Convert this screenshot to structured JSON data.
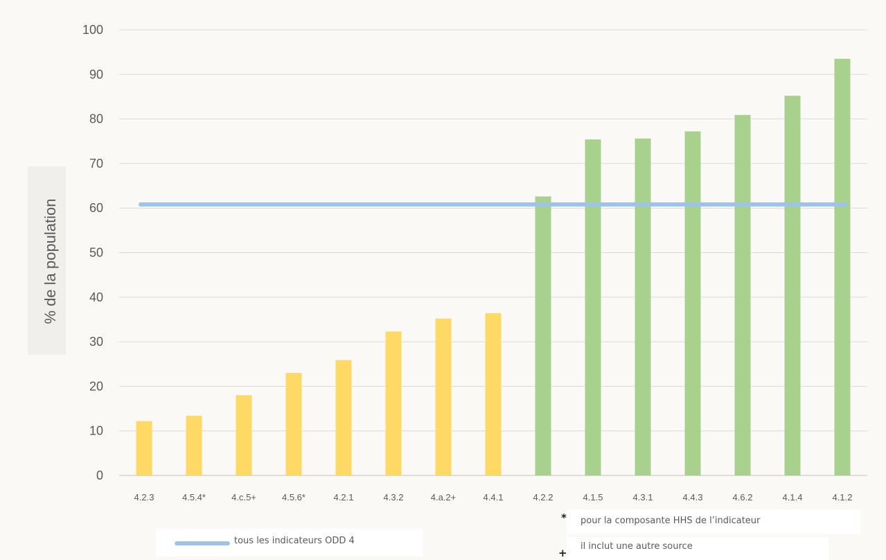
{
  "chart_data": {
    "type": "bar",
    "ylabel": "% de la population",
    "ylim": [
      0,
      100
    ],
    "yticks": [
      0,
      10,
      20,
      30,
      40,
      50,
      60,
      70,
      80,
      90,
      100
    ],
    "grid": true,
    "categories": [
      "4.2.3",
      "4.5.4*",
      "4.c.5+",
      "4.5.6*",
      "4.2.1",
      "4.3.2",
      "4.a.2+",
      "4.4.1",
      "4.2.2",
      "4.1.5",
      "4.3.1",
      "4.4.3",
      "4.6.2",
      "4.1.4",
      "4.1.2"
    ],
    "values": [
      12.2,
      13.4,
      18.0,
      23.0,
      25.9,
      32.3,
      35.2,
      36.4,
      62.6,
      75.4,
      75.6,
      77.2,
      80.9,
      85.2,
      93.5
    ],
    "bar_colors": [
      "#ffd966",
      "#ffd966",
      "#ffd966",
      "#ffd966",
      "#ffd966",
      "#ffd966",
      "#ffd966",
      "#ffd966",
      "#a9d18e",
      "#a9d18e",
      "#a9d18e",
      "#a9d18e",
      "#a9d18e",
      "#a9d18e",
      "#a9d18e"
    ],
    "reference_line": {
      "name": "tous les indicateurs ODD 4",
      "value": 60.8,
      "color": "#9dc3e6"
    },
    "notes": [
      {
        "symbol": "*",
        "text": "pour la composante HHS de l’indicateur"
      },
      {
        "symbol": "+",
        "text": "il inclut une autre source"
      }
    ]
  }
}
